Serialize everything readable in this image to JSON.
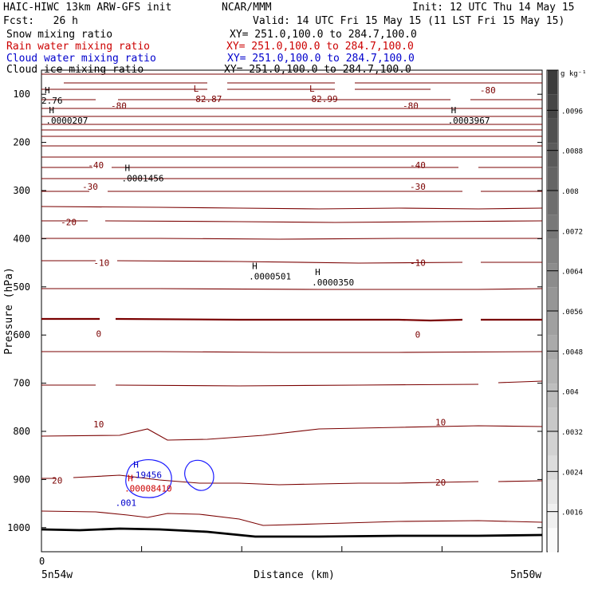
{
  "header": {
    "line1_left": "HAIC-HIWC 13km ARW-GFS init",
    "line1_center": "NCAR/MMM",
    "line1_right": "Init: 12 UTC Thu 14 May 15",
    "fcst": "Fcst:   26 h",
    "valid": "Valid: 14 UTC Fri 15 May 15 (11 LST Fri 15 May 15)",
    "fields": [
      {
        "name": "Snow mixing ratio",
        "xy": "XY= 251.0,100.0 to 284.7,100.0",
        "color": "#000000"
      },
      {
        "name": "Rain water mixing ratio",
        "xy": "XY= 251.0,100.0 to 284.7,100.0",
        "color": "#cc0000"
      },
      {
        "name": "Cloud water mixing ratio",
        "xy": "XY= 251.0,100.0 to 284.7,100.0",
        "color": "#0000cc"
      },
      {
        "name": "Cloud ice mixing ratio",
        "xy": "XY= 251.0,100.0 to 284.7,100.0",
        "color": "#000000"
      }
    ]
  },
  "colors": {
    "temperature": "#7a0000",
    "cloud_water": "#1a1aff",
    "rain_label": "#cc0000",
    "ground": "#000000"
  },
  "chart_data": {
    "type": "contour",
    "ylabel": "Pressure (hPa)",
    "xlabel": "Distance (km)",
    "yticks": [
      100,
      200,
      300,
      400,
      500,
      600,
      700,
      800,
      900,
      1000
    ],
    "ylim": [
      50,
      1050
    ],
    "xlim": [
      0,
      35
    ],
    "xticks": [
      0,
      7,
      14,
      21,
      28
    ],
    "x_tick_labels": [
      "0"
    ],
    "x_end_labels": [
      "5n54w",
      "5n50w"
    ],
    "colorbar": {
      "unit": "g kg⁻¹",
      "ticks": [
        ".0096",
        ".0088",
        ".008",
        ".0072",
        ".0064",
        ".0056",
        ".0048",
        ".004",
        ".0032",
        ".0024",
        ".0016"
      ]
    },
    "temperature_labels": [
      {
        "text": "-80",
        "x": 5.4,
        "p": 124
      },
      {
        "text": "-80",
        "x": 31.2,
        "p": 91
      },
      {
        "text": "-80",
        "x": 25.8,
        "p": 124
      },
      {
        "text": "-40",
        "x": 3.8,
        "p": 247
      },
      {
        "text": "-40",
        "x": 26.3,
        "p": 247
      },
      {
        "text": "-30",
        "x": 3.4,
        "p": 292
      },
      {
        "text": "-30",
        "x": 26.3,
        "p": 292
      },
      {
        "text": "-20",
        "x": 1.9,
        "p": 365
      },
      {
        "text": "-10",
        "x": 4.2,
        "p": 450
      },
      {
        "text": "-10",
        "x": 26.3,
        "p": 450
      },
      {
        "text": "0",
        "x": 4.0,
        "p": 597
      },
      {
        "text": "0",
        "x": 26.3,
        "p": 599
      },
      {
        "text": "10",
        "x": 4.0,
        "p": 785
      },
      {
        "text": "10",
        "x": 27.9,
        "p": 781
      },
      {
        "text": "20",
        "x": 1.1,
        "p": 902
      },
      {
        "text": "20",
        "x": 27.9,
        "p": 906
      }
    ],
    "extrema": [
      {
        "kind": "L",
        "value": "-82.87",
        "x": 10.4,
        "p": 101,
        "color": "#7a0000"
      },
      {
        "kind": "L",
        "value": "-82.99",
        "x": 18.5,
        "p": 101,
        "color": "#7a0000"
      },
      {
        "kind": "H",
        "value": "2.76",
        "x": 0.0,
        "p": 105,
        "color": "#000000"
      },
      {
        "kind": "H",
        "value": ".0000207",
        "x": 0.3,
        "p": 146,
        "color": "#000000"
      },
      {
        "kind": "H",
        "value": ".0003967",
        "x": 28.4,
        "p": 146,
        "color": "#000000"
      },
      {
        "kind": "H",
        "value": ".0001456",
        "x": 5.6,
        "p": 266,
        "color": "#000000"
      },
      {
        "kind": "H",
        "value": ".0000501",
        "x": 14.5,
        "p": 470,
        "color": "#000000"
      },
      {
        "kind": "H",
        "value": ".0000350",
        "x": 18.9,
        "p": 482,
        "color": "#000000"
      },
      {
        "kind": "H",
        "value": ".19456",
        "x": 6.2,
        "p": 882,
        "color": "#0000cc"
      },
      {
        "kind": "H",
        "value": ".00008410",
        "x": 5.8,
        "p": 910,
        "color": "#cc0000"
      }
    ],
    "contour_value_labels": [
      {
        "text": ".001",
        "x": 5.9,
        "p": 948,
        "color": "#0000cc"
      }
    ]
  }
}
